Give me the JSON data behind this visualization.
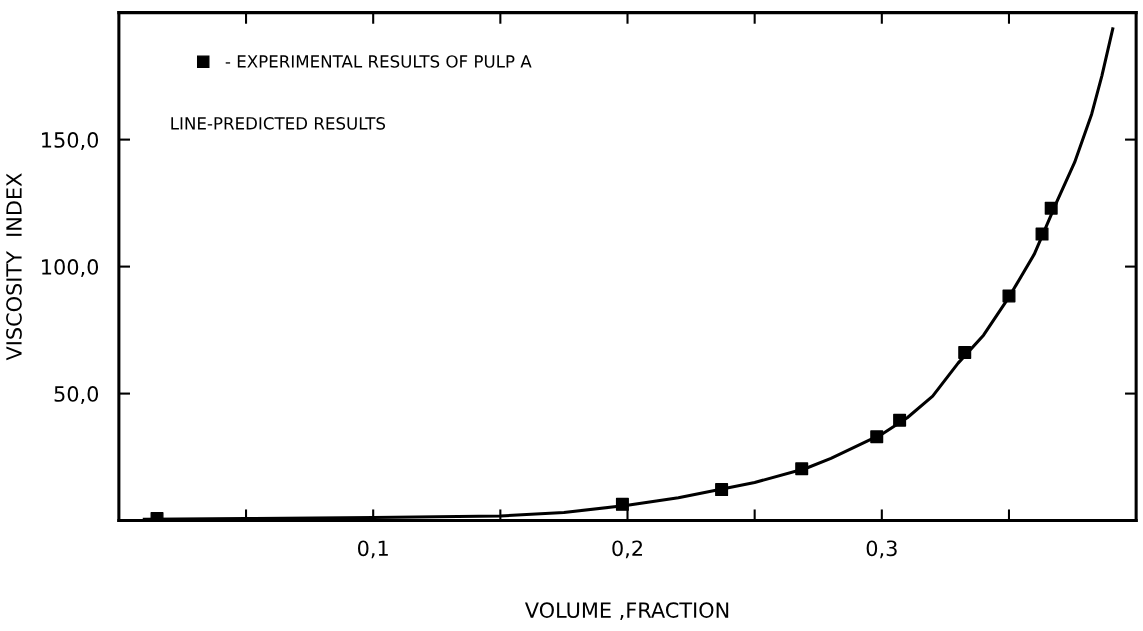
{
  "chart_data": {
    "type": "scatter",
    "xlabel": "VOLUME ,FRACTION",
    "ylabel": "VISCOSITY  INDEX",
    "xlim": [
      0,
      0.4
    ],
    "ylim": [
      0,
      200
    ],
    "xticks": [
      {
        "value": 0.05,
        "label": null
      },
      {
        "value": 0.1,
        "label": "0,1"
      },
      {
        "value": 0.15,
        "label": null
      },
      {
        "value": 0.2,
        "label": "0,2"
      },
      {
        "value": 0.25,
        "label": null
      },
      {
        "value": 0.3,
        "label": "0,3"
      },
      {
        "value": 0.35,
        "label": null
      }
    ],
    "yticks": [
      {
        "value": 50,
        "label": "50,0"
      },
      {
        "value": 100,
        "label": "100,0"
      },
      {
        "value": 150,
        "label": "150,0"
      }
    ],
    "grid": false,
    "legend": "top left",
    "annotations": [
      "LINE-PREDICTED RESULTS"
    ],
    "series": [
      {
        "name": "- EXPERIMENTAL RESULTS OF PULP A",
        "marker": "square",
        "color": "#000000",
        "x": [
          0.015,
          0.198,
          0.237,
          0.2685,
          0.298,
          0.307,
          0.3326,
          0.35,
          0.363,
          0.3666
        ],
        "values": [
          0.8,
          6.4,
          12.2,
          20.4,
          33.0,
          39.5,
          66.2,
          88.4,
          112.8,
          123.0
        ]
      },
      {
        "type": "line",
        "marker": "none",
        "line_style": "solid",
        "color": "#000000",
        "x": [
          0.01,
          0.05,
          0.1,
          0.15,
          0.175,
          0.2,
          0.22,
          0.25,
          0.27,
          0.28,
          0.3,
          0.31,
          0.32,
          0.33,
          0.34,
          0.35,
          0.36,
          0.369,
          0.3758,
          0.3825,
          0.3865,
          0.3908
        ],
        "values": [
          0.5,
          0.8,
          1.2,
          1.8,
          3.2,
          6.0,
          9.0,
          15.0,
          20.5,
          24.5,
          34.0,
          40.5,
          49.0,
          62.0,
          73.0,
          88.0,
          105.0,
          126.0,
          141.0,
          160.0,
          175.0,
          193.6
        ]
      }
    ]
  }
}
